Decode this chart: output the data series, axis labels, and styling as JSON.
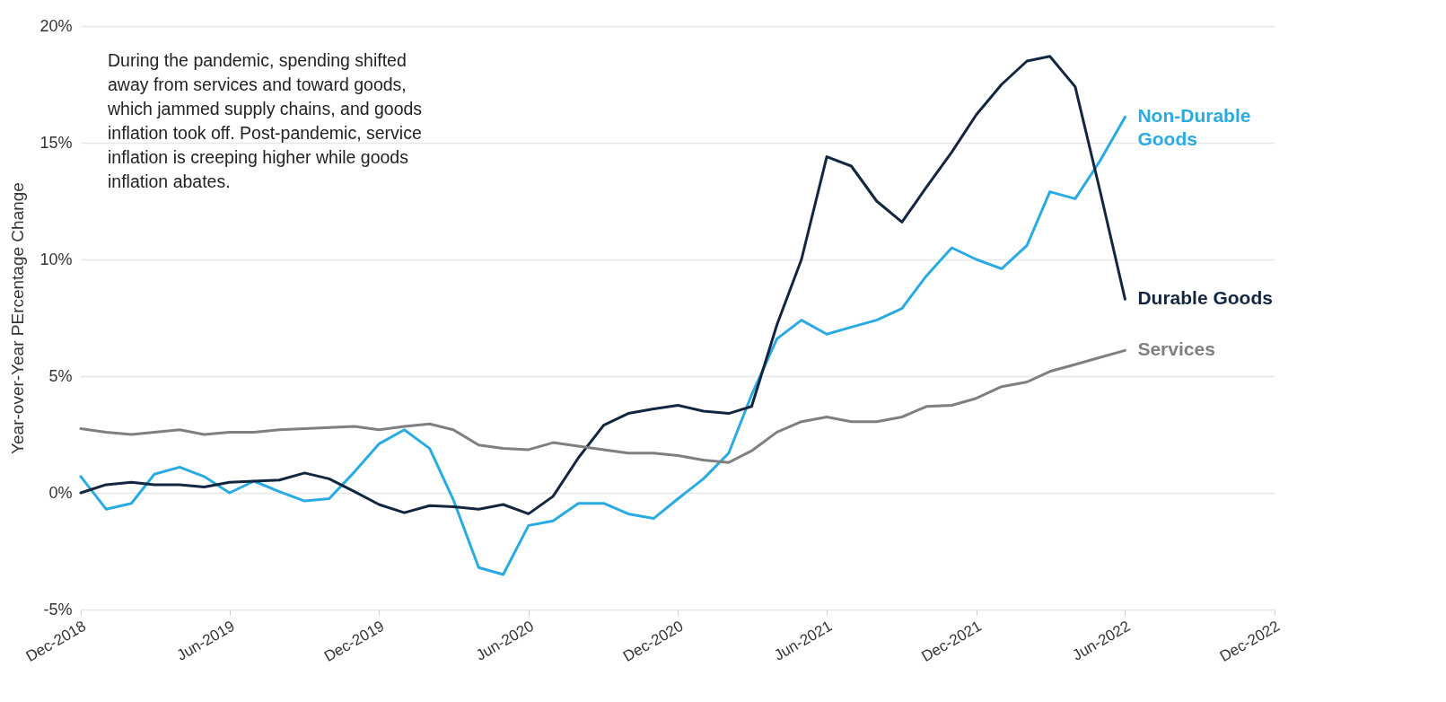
{
  "chart_data": {
    "type": "line",
    "ylabel": "Year-over-Year PErcentage Change",
    "x": [
      "2018-12",
      "2019-01",
      "2019-02",
      "2019-03",
      "2019-04",
      "2019-05",
      "2019-06",
      "2019-07",
      "2019-08",
      "2019-09",
      "2019-10",
      "2019-11",
      "2019-12",
      "2020-01",
      "2020-02",
      "2020-03",
      "2020-04",
      "2020-05",
      "2020-06",
      "2020-07",
      "2020-08",
      "2020-09",
      "2020-10",
      "2020-11",
      "2020-12",
      "2021-01",
      "2021-02",
      "2021-03",
      "2021-04",
      "2021-05",
      "2021-06",
      "2021-07",
      "2021-08",
      "2021-09",
      "2021-10",
      "2021-11",
      "2021-12",
      "2022-01",
      "2022-02",
      "2022-03",
      "2022-04",
      "2022-05",
      "2022-06"
    ],
    "series": [
      {
        "name": "Non-Durable Goods",
        "color": "#29abe2",
        "values": [
          0.7,
          -0.7,
          -0.45,
          0.8,
          1.1,
          0.7,
          0.0,
          0.5,
          0.05,
          -0.35,
          -0.25,
          0.9,
          2.1,
          2.7,
          1.9,
          -0.3,
          -3.2,
          -3.5,
          -1.4,
          -1.2,
          -0.45,
          -0.45,
          -0.9,
          -1.1,
          -0.25,
          0.6,
          1.7,
          4.2,
          6.6,
          7.4,
          6.8,
          7.1,
          7.4,
          7.9,
          9.3,
          10.5,
          10.0,
          9.6,
          10.6,
          12.9,
          12.6,
          14.2,
          16.1
        ]
      },
      {
        "name": "Durable Goods",
        "color": "#13263f",
        "values": [
          0.0,
          0.35,
          0.45,
          0.35,
          0.35,
          0.25,
          0.45,
          0.5,
          0.55,
          0.85,
          0.6,
          0.05,
          -0.5,
          -0.85,
          -0.55,
          -0.6,
          -0.7,
          -0.5,
          -0.9,
          -0.15,
          1.5,
          2.9,
          3.4,
          3.6,
          3.75,
          3.5,
          3.4,
          3.7,
          7.2,
          10.0,
          14.4,
          14.0,
          12.5,
          11.6,
          13.1,
          14.6,
          16.2,
          17.5,
          18.5,
          18.7,
          17.4,
          13.0,
          8.3
        ]
      },
      {
        "name": "Services",
        "color": "#7f7f7f",
        "values": [
          2.75,
          2.6,
          2.5,
          2.6,
          2.7,
          2.5,
          2.6,
          2.6,
          2.7,
          2.75,
          2.8,
          2.85,
          2.7,
          2.85,
          2.95,
          2.7,
          2.05,
          1.9,
          1.85,
          2.15,
          2.0,
          1.85,
          1.7,
          1.7,
          1.6,
          1.4,
          1.3,
          1.8,
          2.6,
          3.05,
          3.25,
          3.05,
          3.05,
          3.25,
          3.7,
          3.75,
          4.05,
          4.55,
          4.75,
          5.2,
          5.5,
          5.8,
          6.1
        ]
      }
    ],
    "xlim": [
      "2018-12",
      "2022-12"
    ],
    "xticks": [
      {
        "value": "2018-12",
        "label": "Dec-2018"
      },
      {
        "value": "2019-06",
        "label": "Jun-2019"
      },
      {
        "value": "2019-12",
        "label": "Dec-2019"
      },
      {
        "value": "2020-06",
        "label": "Jun-2020"
      },
      {
        "value": "2020-12",
        "label": "Dec-2020"
      },
      {
        "value": "2021-06",
        "label": "Jun-2021"
      },
      {
        "value": "2021-12",
        "label": "Dec-2021"
      },
      {
        "value": "2022-06",
        "label": "Jun-2022"
      },
      {
        "value": "2022-12",
        "label": "Dec-2022"
      }
    ],
    "ylim": [
      -5,
      20
    ],
    "yticks": [
      {
        "value": -5,
        "label": "-5%"
      },
      {
        "value": 0,
        "label": "0%"
      },
      {
        "value": 5,
        "label": "5%"
      },
      {
        "value": 10,
        "label": "10%"
      },
      {
        "value": 15,
        "label": "15%"
      },
      {
        "value": 20,
        "label": "20%"
      }
    ],
    "grid": "y",
    "legend": false,
    "marker": "none",
    "line_style": "solid",
    "annotations": [
      "During the pandemic, spending shifted\naway from services and toward goods,\nwhich jammed supply chains, and goods\ninflation took off.  Post-pandemic, service\ninflation is creeping higher while goods\ninflation abates."
    ]
  }
}
